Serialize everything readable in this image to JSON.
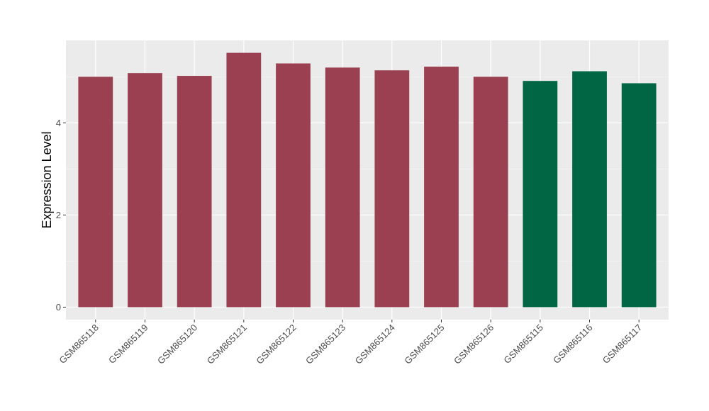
{
  "chart_data": {
    "type": "bar",
    "title": "",
    "xlabel": "",
    "ylabel": "Expression Level",
    "ylim": [
      -0.27,
      5.79
    ],
    "yticks": [
      0,
      2,
      4
    ],
    "ytick_labels": [
      "0",
      "2",
      "4"
    ],
    "grid": true,
    "categories": [
      "GSM865118",
      "GSM865119",
      "GSM865120",
      "GSM865121",
      "GSM865122",
      "GSM865123",
      "GSM865124",
      "GSM865125",
      "GSM865126",
      "GSM865115",
      "GSM865116",
      "GSM865117"
    ],
    "values": [
      5.0,
      5.08,
      5.02,
      5.52,
      5.29,
      5.2,
      5.14,
      5.22,
      5.0,
      4.91,
      5.12,
      4.86
    ],
    "group_colors": [
      "#9a4050",
      "#9a4050",
      "#9a4050",
      "#9a4050",
      "#9a4050",
      "#9a4050",
      "#9a4050",
      "#9a4050",
      "#9a4050",
      "#006644",
      "#006644",
      "#006644"
    ],
    "panel_background": "#ebebeb"
  }
}
